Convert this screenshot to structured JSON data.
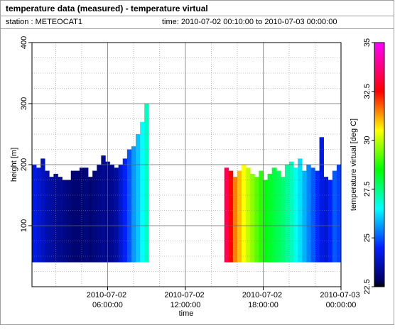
{
  "header": {
    "title": "temperature data (measured) - temperature virtual",
    "station": "station : METEOCAT1",
    "time": "time: 2010-07-02 00:10:00 to 2010-07-03 00:00:00"
  },
  "chart_data": {
    "type": "column-profile",
    "xlabel": "time",
    "ylabel": "height [m]",
    "colorbar_label": "temperature virtual [deg C]",
    "x": [
      "2010-07-02 00:10:00",
      "2010-07-02 00:30:00",
      "2010-07-02 00:50:00",
      "2010-07-02 01:10:00",
      "2010-07-02 01:30:00",
      "2010-07-02 01:50:00",
      "2010-07-02 02:10:00",
      "2010-07-02 02:30:00",
      "2010-07-02 02:50:00",
      "2010-07-02 03:10:00",
      "2010-07-02 03:30:00",
      "2010-07-02 03:50:00",
      "2010-07-02 04:10:00",
      "2010-07-02 04:30:00",
      "2010-07-02 04:50:00",
      "2010-07-02 05:10:00",
      "2010-07-02 05:30:00",
      "2010-07-02 05:50:00",
      "2010-07-02 06:10:00",
      "2010-07-02 06:30:00",
      "2010-07-02 06:50:00",
      "2010-07-02 07:10:00",
      "2010-07-02 07:30:00",
      "2010-07-02 07:50:00",
      "2010-07-02 08:10:00",
      "2010-07-02 08:30:00",
      "2010-07-02 08:50:00",
      "2010-07-02 15:00:00",
      "2010-07-02 15:20:00",
      "2010-07-02 15:40:00",
      "2010-07-02 16:00:00",
      "2010-07-02 16:20:00",
      "2010-07-02 16:40:00",
      "2010-07-02 17:00:00",
      "2010-07-02 17:20:00",
      "2010-07-02 17:40:00",
      "2010-07-02 18:00:00",
      "2010-07-02 18:20:00",
      "2010-07-02 18:40:00",
      "2010-07-02 19:00:00",
      "2010-07-02 19:20:00",
      "2010-07-02 19:40:00",
      "2010-07-02 20:00:00",
      "2010-07-02 20:20:00",
      "2010-07-02 20:40:00",
      "2010-07-02 21:00:00",
      "2010-07-02 21:20:00",
      "2010-07-02 21:40:00",
      "2010-07-02 22:00:00",
      "2010-07-02 22:20:00",
      "2010-07-02 22:40:00",
      "2010-07-02 23:00:00",
      "2010-07-02 23:20:00",
      "2010-07-02 23:40:00"
    ],
    "base": 40,
    "tops": [
      200,
      195,
      210,
      190,
      180,
      185,
      180,
      175,
      175,
      190,
      190,
      195,
      195,
      180,
      190,
      200,
      215,
      205,
      200,
      195,
      200,
      210,
      225,
      230,
      250,
      270,
      300,
      195,
      190,
      180,
      190,
      200,
      195,
      185,
      180,
      190,
      175,
      185,
      195,
      190,
      180,
      200,
      205,
      195,
      210,
      190,
      200,
      195,
      190,
      245,
      180,
      175,
      190,
      200
    ],
    "values": [
      24.2,
      24.0,
      23.8,
      23.6,
      23.5,
      23.4,
      23.3,
      23.2,
      23.1,
      23.0,
      23.0,
      23.0,
      23.1,
      23.0,
      23.1,
      23.2,
      23.3,
      23.2,
      23.3,
      23.5,
      24.0,
      24.5,
      25.0,
      25.6,
      26.0,
      26.5,
      27.0,
      33.3,
      32.5,
      31.5,
      31.0,
      30.5,
      30.0,
      29.6,
      29.2,
      28.8,
      28.4,
      28.2,
      28.0,
      27.8,
      27.6,
      27.3,
      27.0,
      26.6,
      26.2,
      25.8,
      25.4,
      25.0,
      24.6,
      24.2,
      24.0,
      24.5,
      25.0,
      24.8
    ],
    "xlim": [
      "2010-07-02 00:10:00",
      "2010-07-03 00:00:00"
    ],
    "xticks": [
      {
        "value": "2010-07-02 06:00:00",
        "label": "2010-07-02 06:00:00"
      },
      {
        "value": "2010-07-02 12:00:00",
        "label": "2010-07-02 12:00:00"
      },
      {
        "value": "2010-07-02 18:00:00",
        "label": "2010-07-02 18:00:00"
      },
      {
        "value": "2010-07-03 00:00:00",
        "label": "2010-07-03 00:00:00"
      }
    ],
    "ylim": [
      0,
      400
    ],
    "yticks": [
      100,
      200,
      300,
      400
    ],
    "clim": [
      22.5,
      35
    ],
    "cticks": [
      22.5,
      25,
      27.5,
      30,
      32.5,
      35
    ],
    "colormap": [
      {
        "value": 22.5,
        "color": "#000000"
      },
      {
        "value": 22.8,
        "color": "#000060"
      },
      {
        "value": 24.5,
        "color": "#0020ff"
      },
      {
        "value": 26.5,
        "color": "#00ffff"
      },
      {
        "value": 28.5,
        "color": "#00ff00"
      },
      {
        "value": 30.5,
        "color": "#ffff00"
      },
      {
        "value": 32.5,
        "color": "#ff0000"
      },
      {
        "value": 35,
        "color": "#ff00ff"
      }
    ],
    "grid": true
  }
}
